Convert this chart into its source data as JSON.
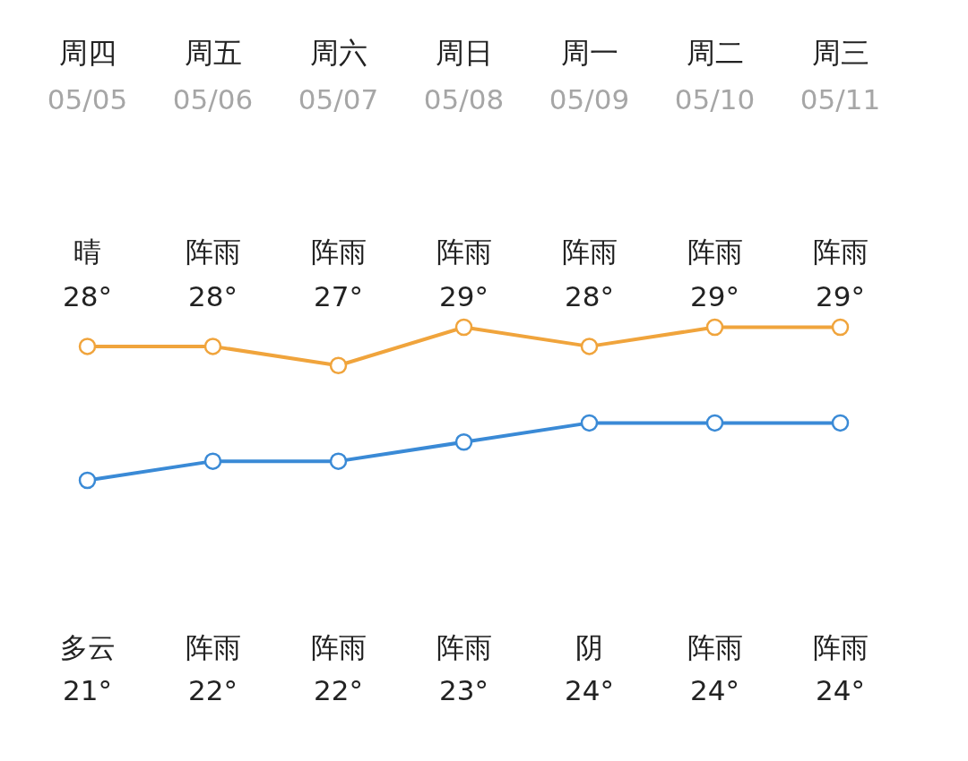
{
  "chart_data": {
    "type": "line",
    "categories": [
      "周四",
      "周五",
      "周六",
      "周日",
      "周一",
      "周二",
      "周三"
    ],
    "series": [
      {
        "color": "#f0a43c",
        "values": [
          28,
          28,
          27,
          29,
          28,
          29,
          29
        ],
        "value_labels": [
          "28°",
          "28°",
          "27°",
          "29°",
          "28°",
          "29°",
          "29°"
        ]
      },
      {
        "color": "#3a8ad6",
        "values": [
          21,
          22,
          22,
          23,
          24,
          24,
          24
        ],
        "value_labels": [
          "21°",
          "22°",
          "22°",
          "23°",
          "24°",
          "24°",
          "24°"
        ]
      }
    ],
    "marker": "circle",
    "annotations": [
      "05/05",
      "05/06",
      "05/07",
      "05/08",
      "05/09",
      "05/10",
      "05/11",
      "晴",
      "阵雨",
      "阵雨",
      "阵雨",
      "阵雨",
      "阵雨",
      "阵雨",
      "多云",
      "阵雨",
      "阵雨",
      "阵雨",
      "阴",
      "阵雨",
      "阵雨"
    ]
  }
}
